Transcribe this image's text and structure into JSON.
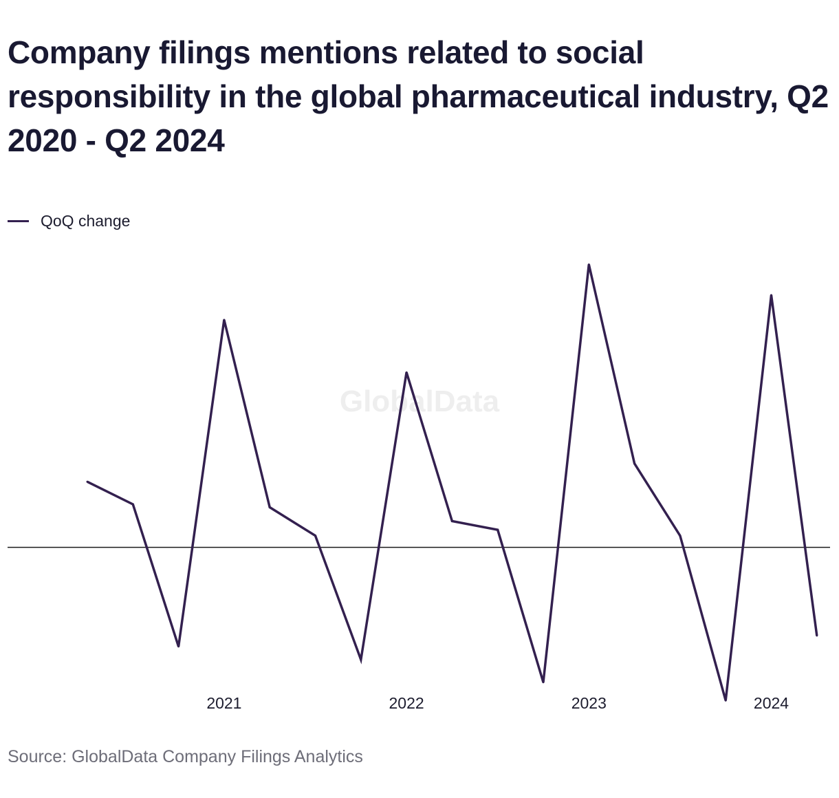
{
  "title": "Company filings mentions related to social responsibility in the global pharmaceutical industry, Q2 2020 - Q2 2024",
  "legend": {
    "label": "QoQ change"
  },
  "watermark": "GlobalData",
  "source": "Source: GlobalData Company Filings Analytics",
  "colors": {
    "line": "#33204f",
    "baseline": "#1a1a1a",
    "watermark": "#eeeeee",
    "text": "#1c1c2e",
    "source": "#6d6d78"
  },
  "chart_data": {
    "type": "line",
    "title": "Company filings mentions related to social responsibility in the global pharmaceutical industry, Q2 2020 - Q2 2024",
    "xlabel": "",
    "ylabel": "",
    "x": [
      "Q2 2020",
      "Q3 2020",
      "Q4 2020",
      "Q1 2021",
      "Q2 2021",
      "Q3 2021",
      "Q4 2021",
      "Q1 2022",
      "Q2 2022",
      "Q3 2022",
      "Q4 2022",
      "Q1 2023",
      "Q2 2023",
      "Q3 2023",
      "Q4 2023",
      "Q1 2024",
      "Q2 2024"
    ],
    "x_tick_labels": [
      {
        "label": "2021",
        "at": "Q1 2021"
      },
      {
        "label": "2022",
        "at": "Q1 2022"
      },
      {
        "label": "2023",
        "at": "Q1 2023"
      },
      {
        "label": "2024",
        "at": "Q1 2024"
      }
    ],
    "series": [
      {
        "name": "QoQ change",
        "values": [
          0.9,
          0.59,
          -1.36,
          3.12,
          0.55,
          0.16,
          -1.54,
          2.4,
          0.36,
          0.24,
          -1.85,
          3.88,
          1.15,
          0.16,
          -2.1,
          3.46,
          -1.21
        ]
      }
    ],
    "ylim": [
      -2.4,
      4.3
    ],
    "baseline": 0,
    "y_axis_visible": false,
    "grid": false,
    "legend_position": "top-left"
  }
}
